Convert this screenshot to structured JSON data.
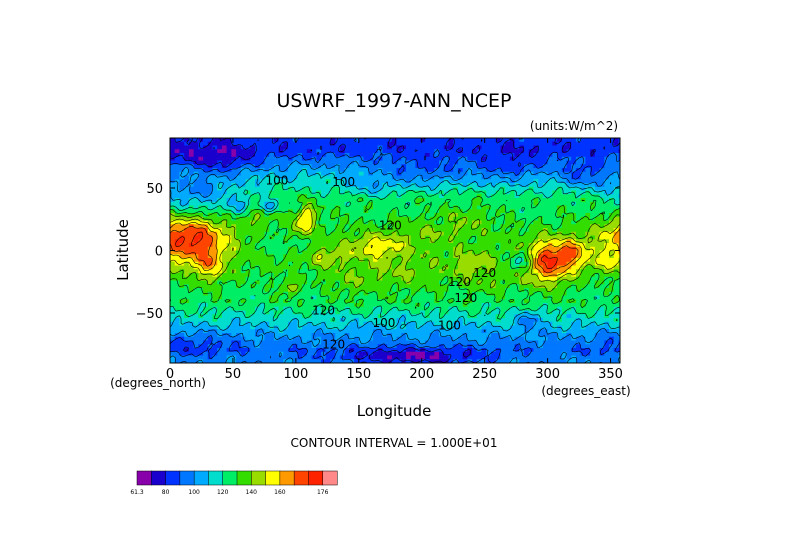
{
  "chart_data": {
    "type": "heatmap",
    "title": "USWRF_1997-ANN_NCEP",
    "units": "(units:W/m^2)",
    "xlabel": "Longitude",
    "ylabel": "Latitude",
    "x_unit_note": "(degrees_east)",
    "y_unit_note": "(degrees_north)",
    "xlim": [
      0,
      357.5
    ],
    "ylim": [
      -90,
      90
    ],
    "x_ticks": [
      0,
      50,
      100,
      150,
      200,
      250,
      300,
      350
    ],
    "x_tick_labels": [
      "0",
      "50",
      "100",
      "150",
      "200",
      "250",
      "300",
      "350"
    ],
    "y_ticks": [
      50,
      0,
      -50
    ],
    "y_tick_labels": [
      "50",
      "0",
      "−50"
    ],
    "contour_interval_text": "CONTOUR INTERVAL = 1.000E+01",
    "contour_labels": [
      "100",
      "100",
      "120",
      "120",
      "120",
      "120",
      "120",
      "100",
      "100",
      "120"
    ],
    "colorbar": {
      "tick_labels": [
        "61.3",
        "80",
        "100",
        "120",
        "140",
        "160",
        "176"
      ],
      "levels": [
        61.3,
        70,
        80,
        90,
        100,
        110,
        120,
        130,
        140,
        150,
        160,
        170,
        176
      ],
      "colors": [
        "#8800aa",
        "#1a00cc",
        "#0033ff",
        "#0077ff",
        "#00aaff",
        "#00ddcc",
        "#00ee66",
        "#33dd00",
        "#99dd00",
        "#ffff00",
        "#ff9900",
        "#ff4400",
        "#ff2200",
        "#ff8888"
      ]
    }
  }
}
